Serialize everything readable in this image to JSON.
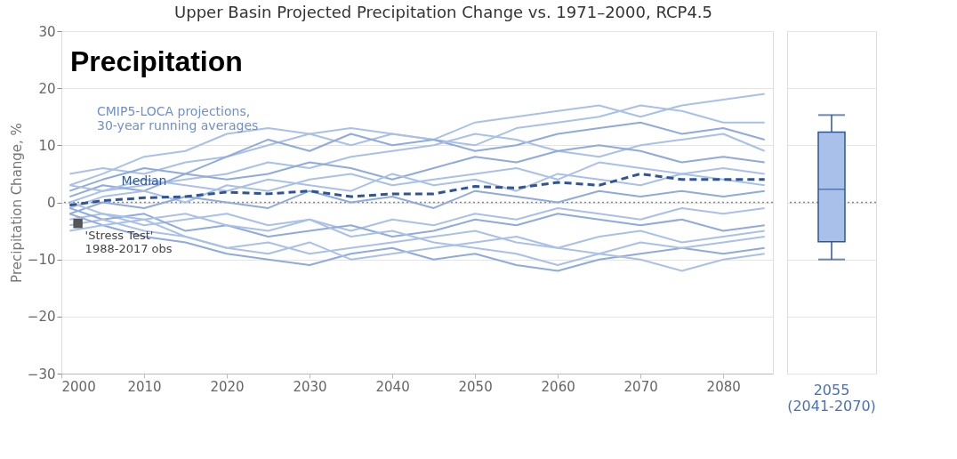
{
  "chart_data": [
    {
      "type": "line",
      "title": "Upper Basin Projected Precipitation Change vs. 1971–2000, RCP4.5",
      "ylabel": "Precipitation Change, %",
      "x": [
        2001,
        2005,
        2010,
        2015,
        2020,
        2025,
        2030,
        2035,
        2040,
        2045,
        2050,
        2055,
        2060,
        2065,
        2070,
        2075,
        2080,
        2085
      ],
      "xlim": [
        2000,
        2086
      ],
      "xticks": [
        2000,
        2010,
        2020,
        2030,
        2040,
        2050,
        2060,
        2070,
        2080
      ],
      "ylim": [
        -30,
        30
      ],
      "yticks": [
        -30,
        -20,
        -10,
        0,
        10,
        20,
        30
      ],
      "grid": "y",
      "legend": false,
      "marker": "none",
      "ref_lines": [
        {
          "axis": "y",
          "value": 0,
          "color": "#888888",
          "line_style": "dotted"
        }
      ],
      "annotations": [
        "Precipitation",
        "CMIP5-LOCA projections,\n30-year running averages",
        {
          "text": "'Stress Test'\n1988-2017 obs",
          "x": 2002,
          "y": -3.7
        }
      ],
      "series": [
        {
          "color": "#a9c0ea",
          "values": [
            3,
            5,
            8,
            9,
            12,
            13,
            12,
            10,
            12,
            11,
            14,
            15,
            16,
            17,
            15,
            17,
            18,
            19
          ]
        },
        {
          "color": "#a9c0ea",
          "values": [
            5,
            6,
            5,
            7,
            8,
            10,
            12,
            13,
            12,
            11,
            10,
            13,
            14,
            15,
            17,
            16,
            14,
            14
          ]
        },
        {
          "color": "#8eaadf",
          "values": [
            2,
            4,
            6,
            5,
            8,
            11,
            9,
            12,
            10,
            11,
            9,
            10,
            12,
            13,
            14,
            12,
            13,
            11
          ]
        },
        {
          "color": "#a9c0ea",
          "values": [
            0,
            2,
            3,
            4,
            5,
            7,
            6,
            8,
            9,
            10,
            12,
            11,
            9,
            8,
            10,
            11,
            12,
            9
          ]
        },
        {
          "color": "#8eaadf",
          "values": [
            1,
            3,
            2,
            5,
            4,
            5,
            7,
            6,
            4,
            6,
            8,
            7,
            9,
            10,
            9,
            7,
            8,
            7
          ]
        },
        {
          "color": "#a9c0ea",
          "values": [
            -1,
            1,
            2,
            0,
            3,
            2,
            4,
            5,
            3,
            4,
            5,
            6,
            4,
            7,
            6,
            5,
            6,
            5
          ]
        },
        {
          "color": "#a9c0ea",
          "values": [
            3,
            2,
            4,
            3,
            2,
            4,
            3,
            2,
            5,
            3,
            4,
            2,
            5,
            4,
            3,
            5,
            4,
            3
          ]
        },
        {
          "color": "#8eaadf",
          "values": [
            -2,
            0,
            -1,
            1,
            0,
            -1,
            2,
            0,
            1,
            -1,
            2,
            1,
            0,
            2,
            1,
            2,
            1,
            2
          ]
        },
        {
          "color": "#a9c0ea",
          "values": [
            -3,
            -2,
            -4,
            -3,
            -2,
            -4,
            -3,
            -5,
            -3,
            -4,
            -2,
            -3,
            -1,
            -2,
            -3,
            -1,
            -2,
            -1
          ]
        },
        {
          "color": "#8eaadf",
          "values": [
            -1,
            -3,
            -2,
            -5,
            -4,
            -6,
            -5,
            -4,
            -6,
            -5,
            -3,
            -4,
            -2,
            -3,
            -4,
            -3,
            -5,
            -4
          ]
        },
        {
          "color": "#a9c0ea",
          "values": [
            -4,
            -3,
            -5,
            -6,
            -8,
            -7,
            -9,
            -8,
            -7,
            -6,
            -5,
            -7,
            -8,
            -6,
            -5,
            -7,
            -6,
            -5
          ]
        },
        {
          "color": "#8eaadf",
          "values": [
            -2,
            -4,
            -6,
            -7,
            -9,
            -10,
            -11,
            -9,
            -8,
            -10,
            -9,
            -11,
            -12,
            -10,
            -9,
            -8,
            -9,
            -8
          ]
        },
        {
          "color": "#a9c0ea",
          "values": [
            -5,
            -4,
            -3,
            -6,
            -8,
            -9,
            -7,
            -10,
            -9,
            -8,
            -7,
            -6,
            -8,
            -9,
            -7,
            -8,
            -7,
            -6
          ]
        },
        {
          "color": "#a9c0ea",
          "values": [
            0,
            -2,
            -3,
            -2,
            -4,
            -5,
            -3,
            -6,
            -5,
            -7,
            -8,
            -9,
            -11,
            -9,
            -10,
            -12,
            -10,
            -9
          ]
        },
        {
          "name": "Median",
          "color": "#2f5597",
          "line_style": "dashed",
          "values": [
            -0.5,
            0.3,
            0.8,
            1,
            1.8,
            1.5,
            2,
            1,
            1.5,
            1.5,
            2.8,
            2.5,
            3.5,
            3,
            5,
            4,
            4,
            4
          ]
        },
        {
          "type": "scatter",
          "marker": "square",
          "color": "#555555",
          "x": [
            2002
          ],
          "values": [
            -3.7
          ]
        }
      ]
    },
    {
      "type": "box",
      "categories": [
        "2055\n(2041-2070)"
      ],
      "ylim": [
        -30,
        30
      ],
      "yticks": [
        -30,
        -20,
        -10,
        0,
        10,
        20,
        30
      ],
      "grid": "y",
      "tick_labels": "x",
      "ref_lines": [
        {
          "axis": "y",
          "value": 0,
          "color": "#888888",
          "line_style": "dotted"
        }
      ],
      "series": [
        {
          "color": "#a9c0ea",
          "boxes": [
            {
              "low": -10,
              "q1": -6.9,
              "median": 2.3,
              "q3": 12.3,
              "high": 15.3
            }
          ]
        }
      ]
    }
  ]
}
